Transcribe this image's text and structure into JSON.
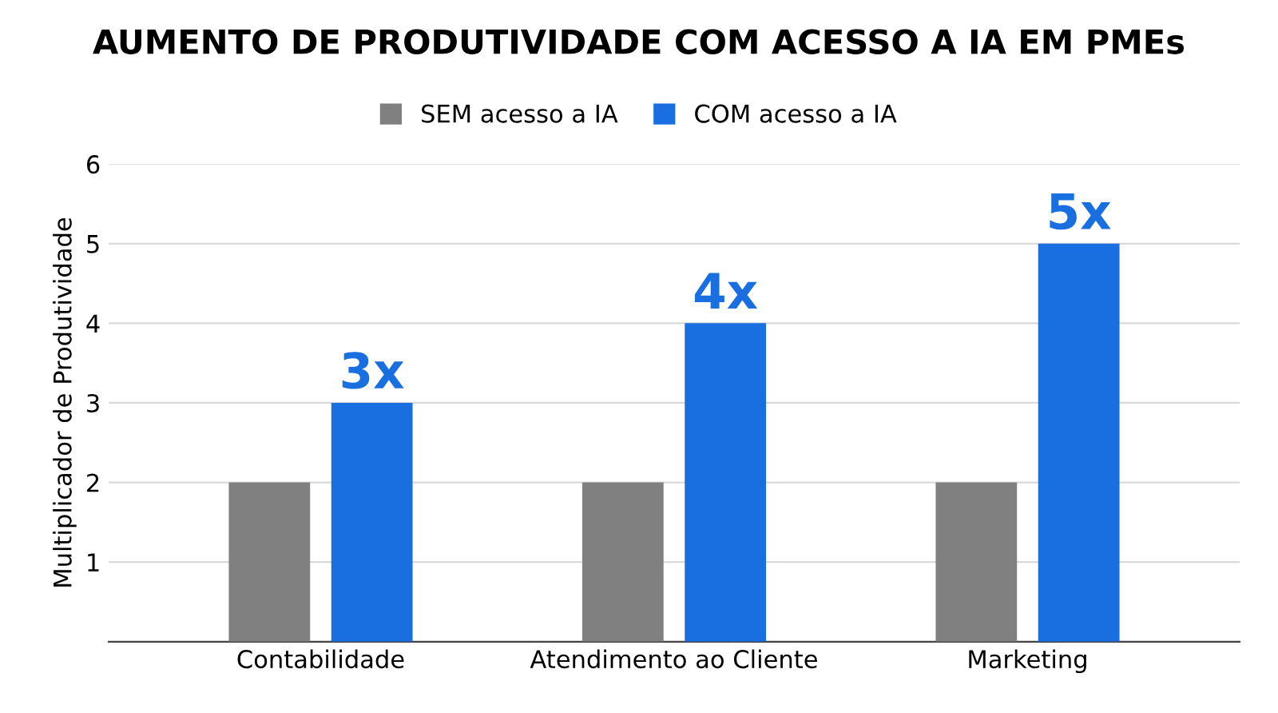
{
  "chart_data": {
    "type": "bar",
    "title": "AUMENTO DE PRODUTIVIDADE COM ACESSO A IA EM PMEs",
    "ylabel": "Multiplicador de Produtividade",
    "categories": [
      "Contabilidade",
      "Atendimento ao Cliente",
      "Marketing"
    ],
    "series": [
      {
        "name": "SEM acesso a IA",
        "color": "#808080",
        "values": [
          2,
          2,
          2
        ]
      },
      {
        "name": "COM acesso a IA",
        "color": "#1a6fe0",
        "values": [
          3,
          4,
          5
        ],
        "value_labels": [
          "3x",
          "4x",
          "5x"
        ]
      }
    ],
    "ylim": [
      0,
      6
    ],
    "yticks": [
      1,
      2,
      3,
      4,
      5,
      6
    ],
    "grid": "y",
    "legend": "top"
  }
}
